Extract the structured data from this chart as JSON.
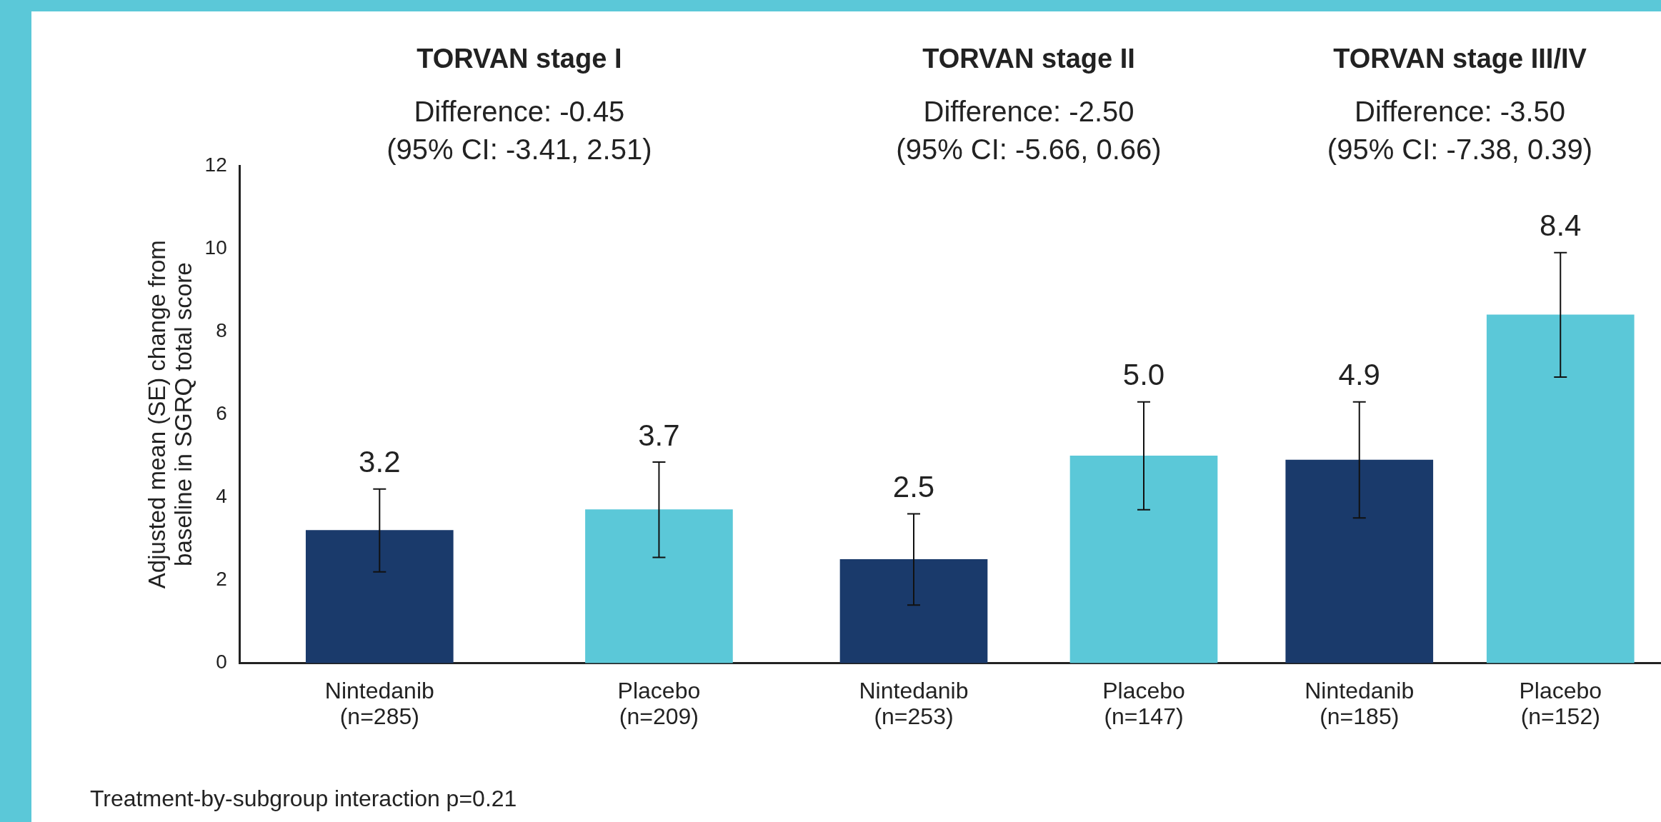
{
  "chart_data": [
    {
      "type": "bar",
      "title": "TORVAN stage I",
      "subtitle": "Difference: -0.45\n(95% CI: -3.41, 2.51)",
      "ylabel": "Adjusted mean (SE) change from\nbaseline in SGRQ total score",
      "categories": [
        "Nintedanib\n(n=285)",
        "Placebo\n(n=209)"
      ],
      "values": [
        3.2,
        3.7
      ],
      "value_labels": [
        "3.2",
        "3.7"
      ],
      "errors": [
        1.0,
        1.15
      ],
      "colors": [
        "#1a3a6b",
        "#5bc8d8"
      ],
      "ylim": [
        0,
        12
      ],
      "yticks": [
        0,
        2,
        4,
        6,
        8,
        10,
        12
      ],
      "grid": false,
      "legend": false,
      "annotations": [
        "Treatment-by-subgroup interaction p=0.21"
      ]
    },
    {
      "type": "bar",
      "title": "TORVAN stage II",
      "subtitle": "Difference: -2.50\n(95% CI: -5.66, 0.66)",
      "categories": [
        "Nintedanib\n(n=253)",
        "Placebo\n(n=147)"
      ],
      "values": [
        2.5,
        5.0
      ],
      "value_labels": [
        "2.5",
        "5.0"
      ],
      "errors": [
        1.1,
        1.3
      ],
      "colors": [
        "#1a3a6b",
        "#5bc8d8"
      ],
      "ylim": [
        0,
        12
      ],
      "yticks": [
        0,
        2,
        4,
        6,
        8,
        10,
        12
      ],
      "grid": false,
      "legend": false,
      "tick_labels": "x"
    },
    {
      "type": "bar",
      "title": "TORVAN stage III/IV",
      "subtitle": "Difference: -3.50\n(95% CI: -7.38, 0.39)",
      "categories": [
        "Nintedanib\n(n=185)",
        "Placebo\n(n=152)"
      ],
      "values": [
        4.9,
        8.4
      ],
      "value_labels": [
        "4.9",
        "8.4"
      ],
      "errors": [
        1.4,
        1.5
      ],
      "colors": [
        "#1a3a6b",
        "#5bc8d8"
      ],
      "ylim": [
        0,
        12
      ],
      "yticks": [
        0,
        2,
        4,
        6,
        8,
        10,
        12
      ],
      "grid": false,
      "legend": false,
      "tick_labels": "x"
    }
  ]
}
